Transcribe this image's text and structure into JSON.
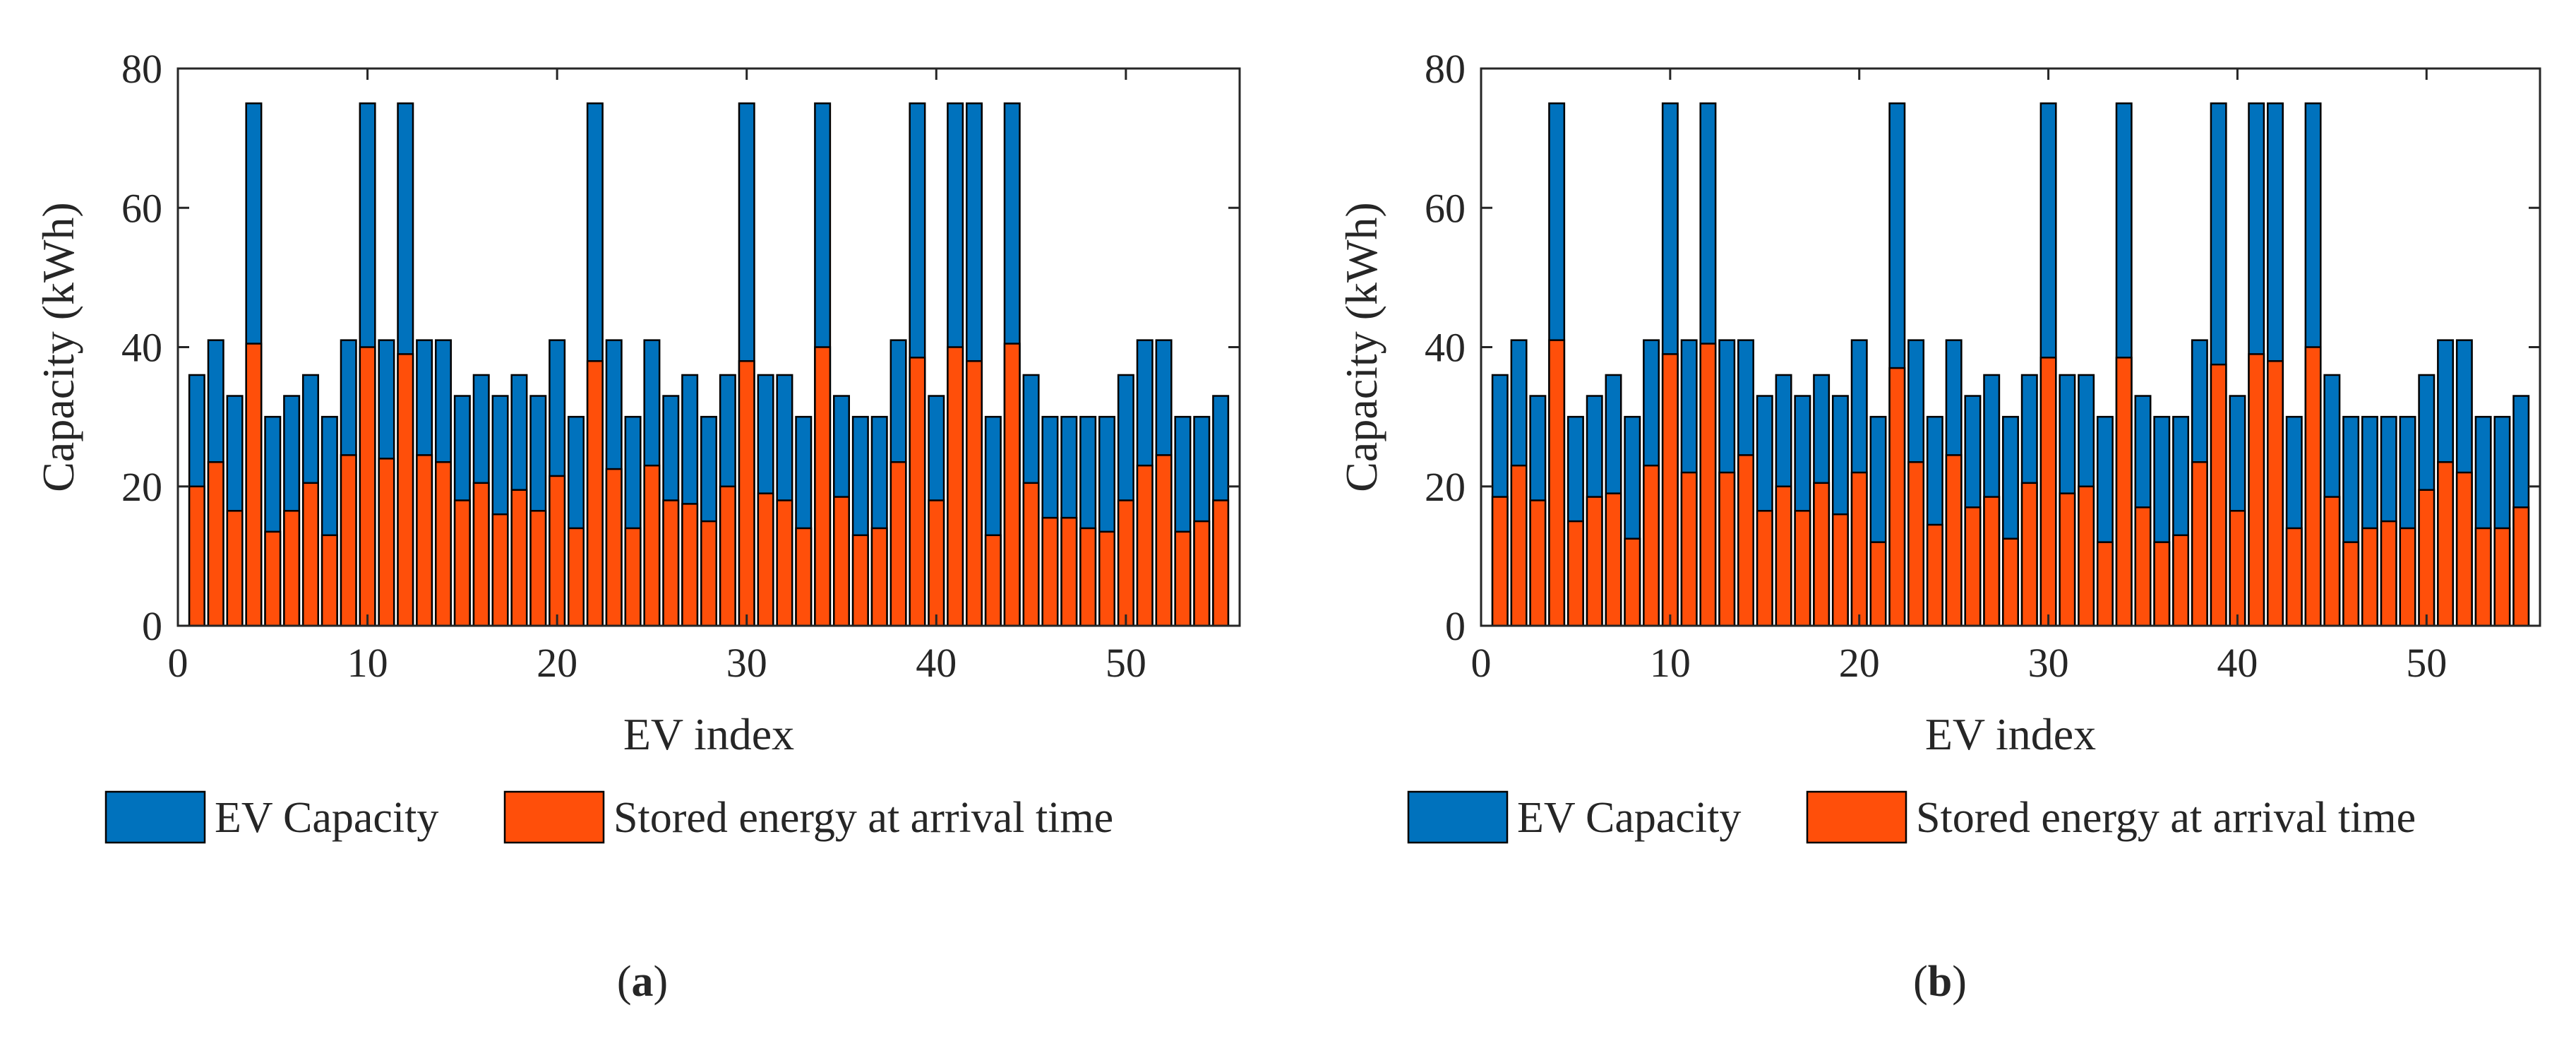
{
  "colors": {
    "capacity": "#0072BD",
    "stored": "#FF4F0A",
    "axis": "#262626",
    "bar_edge": "#000000"
  },
  "chart_data": [
    {
      "type": "bar",
      "stacking": "overlay",
      "panel_label": "a",
      "caption_open": "(",
      "caption_close": ")",
      "xlabel": "EV index",
      "ylabel": "Capacity (kWh)",
      "xlim": [
        0,
        56
      ],
      "ylim": [
        0,
        80
      ],
      "xticks": [
        0,
        10,
        20,
        30,
        40,
        50
      ],
      "yticks": [
        0,
        20,
        40,
        60,
        80
      ],
      "legend_position": "bottom",
      "x": [
        1,
        2,
        3,
        4,
        5,
        6,
        7,
        8,
        9,
        10,
        11,
        12,
        13,
        14,
        15,
        16,
        17,
        18,
        19,
        20,
        21,
        22,
        23,
        24,
        25,
        26,
        27,
        28,
        29,
        30,
        31,
        32,
        33,
        34,
        35,
        36,
        37,
        38,
        39,
        40,
        41,
        42,
        43,
        44,
        45,
        46,
        47,
        48,
        49,
        50,
        51,
        52,
        53,
        54,
        55
      ],
      "series": [
        {
          "name": "EV Capacity",
          "values": [
            36,
            41,
            33,
            75,
            30,
            33,
            36,
            30,
            41,
            75,
            41,
            75,
            41,
            41,
            33,
            36,
            33,
            36,
            33,
            41,
            30,
            75,
            41,
            30,
            41,
            33,
            36,
            30,
            36,
            75,
            36,
            36,
            30,
            75,
            33,
            30,
            30,
            41,
            75,
            33,
            75,
            75,
            30,
            75,
            36,
            30,
            30,
            30,
            30,
            36,
            41,
            41,
            30,
            30,
            33
          ]
        },
        {
          "name": "Stored energy at arrival time",
          "values": [
            20,
            23.5,
            16.5,
            40.5,
            13.5,
            16.5,
            20.5,
            13,
            24.5,
            40,
            24,
            39,
            24.5,
            23.5,
            18,
            20.5,
            16,
            19.5,
            16.5,
            21.5,
            14,
            38,
            22.5,
            14,
            23,
            18,
            17.5,
            15,
            20,
            38,
            19,
            18,
            14,
            40,
            18.5,
            13,
            14,
            23.5,
            38.5,
            18,
            40,
            38,
            13,
            40.5,
            20.5,
            15.5,
            15.5,
            14,
            13.5,
            18,
            23,
            24.5,
            13.5,
            15,
            18
          ]
        }
      ]
    },
    {
      "type": "bar",
      "stacking": "overlay",
      "panel_label": "b",
      "caption_open": "(",
      "caption_close": ")",
      "xlabel": "EV index",
      "ylabel": "Capacity (kWh)",
      "xlim": [
        0,
        56
      ],
      "ylim": [
        0,
        80
      ],
      "xticks": [
        0,
        10,
        20,
        30,
        40,
        50
      ],
      "yticks": [
        0,
        20,
        40,
        60,
        80
      ],
      "legend_position": "bottom",
      "x": [
        1,
        2,
        3,
        4,
        5,
        6,
        7,
        8,
        9,
        10,
        11,
        12,
        13,
        14,
        15,
        16,
        17,
        18,
        19,
        20,
        21,
        22,
        23,
        24,
        25,
        26,
        27,
        28,
        29,
        30,
        31,
        32,
        33,
        34,
        35,
        36,
        37,
        38,
        39,
        40,
        41,
        42,
        43,
        44,
        45,
        46,
        47,
        48,
        49,
        50,
        51,
        52,
        53,
        54,
        55
      ],
      "series": [
        {
          "name": "EV Capacity",
          "values": [
            36,
            41,
            33,
            75,
            30,
            33,
            36,
            30,
            41,
            75,
            41,
            75,
            41,
            41,
            33,
            36,
            33,
            36,
            33,
            41,
            30,
            75,
            41,
            30,
            41,
            33,
            36,
            30,
            36,
            75,
            36,
            36,
            30,
            75,
            33,
            30,
            30,
            41,
            75,
            33,
            75,
            75,
            30,
            75,
            36,
            30,
            30,
            30,
            30,
            36,
            41,
            41,
            30,
            30,
            33
          ]
        },
        {
          "name": "Stored energy at arrival time",
          "values": [
            18.5,
            23,
            18,
            41,
            15,
            18.5,
            19,
            12.5,
            23,
            39,
            22,
            40.5,
            22,
            24.5,
            16.5,
            20,
            16.5,
            20.5,
            16,
            22,
            12,
            37,
            23.5,
            14.5,
            24.5,
            17,
            18.5,
            12.5,
            20.5,
            38.5,
            19,
            20,
            12,
            38.5,
            17,
            12,
            13,
            23.5,
            37.5,
            16.5,
            39,
            38,
            14,
            40,
            18.5,
            12,
            14,
            15,
            14,
            19.5,
            23.5,
            22,
            14,
            14,
            17
          ]
        }
      ]
    }
  ]
}
